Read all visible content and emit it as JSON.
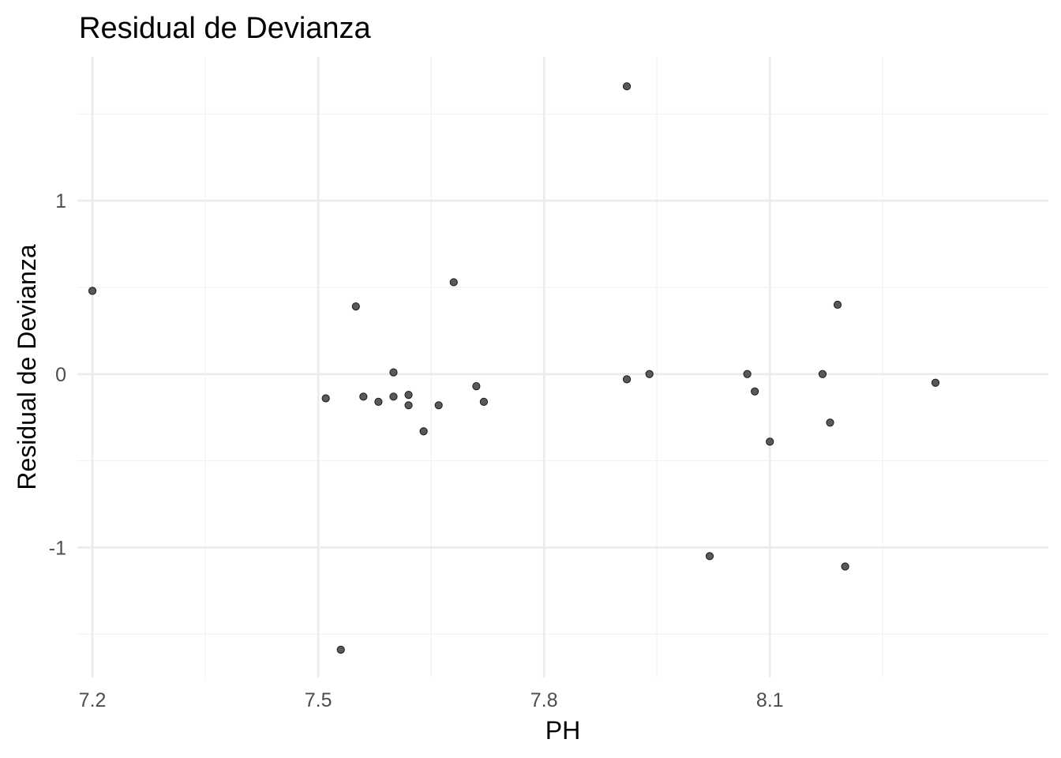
{
  "chart_data": {
    "type": "scatter",
    "title": "Residual de Devianza",
    "xlabel": "PH",
    "ylabel": "Residual de Devianza",
    "xlim": [
      7.18,
      8.47
    ],
    "ylim": [
      -1.75,
      1.83
    ],
    "x_ticks": [
      7.2,
      7.5,
      7.8,
      8.1
    ],
    "x_tick_labels": [
      "7.2",
      "7.5",
      "7.8",
      "8.1"
    ],
    "x_minor_ticks": [
      7.35,
      7.65,
      7.95,
      8.25
    ],
    "y_ticks": [
      -1,
      0,
      1
    ],
    "y_tick_labels": [
      "-1",
      "0",
      "1"
    ],
    "y_minor_ticks": [
      -1.5,
      -0.5,
      0.5,
      1.5
    ],
    "grid": true,
    "point_color": "#595959",
    "point_outline": "#1a1a1a",
    "series": [
      {
        "x": [
          7.2,
          7.51,
          7.53,
          7.55,
          7.56,
          7.58,
          7.6,
          7.6,
          7.62,
          7.62,
          7.64,
          7.66,
          7.68,
          7.71,
          7.72,
          7.91,
          7.91,
          7.94,
          8.02,
          8.07,
          8.08,
          8.1,
          8.17,
          8.18,
          8.19,
          8.2,
          8.32
        ],
        "y": [
          0.48,
          -0.14,
          -1.59,
          0.39,
          -0.13,
          -0.16,
          0.01,
          -0.13,
          -0.12,
          -0.18,
          -0.33,
          -0.18,
          0.53,
          -0.07,
          -0.16,
          1.66,
          -0.03,
          0.0,
          -1.05,
          0.0,
          -0.1,
          -0.39,
          0.0,
          -0.28,
          0.4,
          -1.11,
          -0.05
        ]
      }
    ]
  }
}
